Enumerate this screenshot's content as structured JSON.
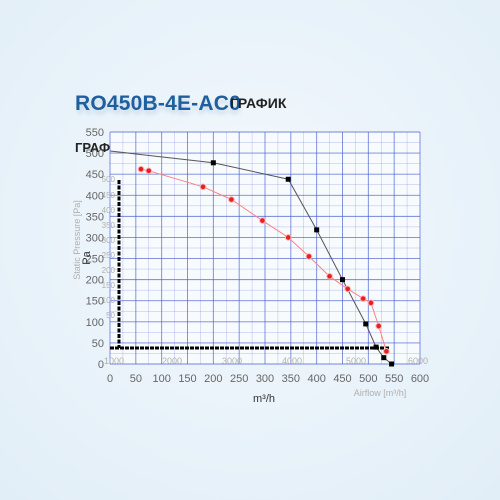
{
  "header": {
    "title": "RO450B-4E-AC0",
    "title_suffix": "ГРАФИК",
    "subtitle": "ГРАФИК"
  },
  "colors": {
    "grid": "#4a5fd0",
    "total_curve": "#555555",
    "static_curve": "#ff8080",
    "marker_black": "#000000",
    "marker_red": "#e62020",
    "tick_text": "#666666",
    "ghost_text": "#b0b0b0"
  },
  "chart_data": {
    "type": "line",
    "title": "",
    "xlabel": "m³/h",
    "ylabel": "Pa",
    "xlim": [
      0,
      600
    ],
    "ylim": [
      0,
      550
    ],
    "x_ticks": [
      "0",
      "50",
      "100",
      "150",
      "200",
      "250",
      "300",
      "350",
      "400",
      "450",
      "500",
      "550",
      "600"
    ],
    "y_ticks": [
      "0",
      "50",
      "100",
      "150",
      "200",
      "250",
      "300",
      "350",
      "400",
      "450",
      "500",
      "550"
    ],
    "ghost_labels": {
      "ylabel": "Static Pressure [Pa]",
      "xlabel": "Airflow [m³/h]",
      "x_ticks": [
        "1000",
        "2000",
        "3000",
        "4000",
        "5000",
        "6000"
      ],
      "y_ticks": [
        "500",
        "450",
        "400",
        "350",
        "300",
        "250",
        "200",
        "150",
        "100",
        "50"
      ]
    },
    "series": [
      {
        "name": "",
        "points": [
          [
            0,
            505
          ],
          [
            200,
            477
          ],
          [
            345,
            438
          ],
          [
            400,
            318
          ],
          [
            450,
            200
          ],
          [
            495,
            95
          ],
          [
            515,
            40
          ],
          [
            530,
            15
          ],
          [
            545,
            0
          ]
        ]
      },
      {
        "name": "",
        "points": [
          [
            60,
            462
          ],
          [
            75,
            458
          ],
          [
            180,
            420
          ],
          [
            235,
            390
          ],
          [
            295,
            340
          ],
          [
            345,
            300
          ],
          [
            385,
            255
          ],
          [
            425,
            208
          ],
          [
            460,
            178
          ],
          [
            490,
            155
          ],
          [
            505,
            145
          ],
          [
            520,
            90
          ],
          [
            535,
            30
          ]
        ]
      }
    ],
    "markers_total": [
      [
        200,
        477
      ],
      [
        345,
        438
      ],
      [
        400,
        318
      ],
      [
        450,
        200
      ],
      [
        495,
        95
      ],
      [
        515,
        40
      ],
      [
        530,
        15
      ],
      [
        545,
        0
      ]
    ],
    "markers_static": [
      [
        60,
        462
      ],
      [
        75,
        458
      ],
      [
        180,
        420
      ],
      [
        235,
        390
      ],
      [
        295,
        340
      ],
      [
        345,
        300
      ],
      [
        385,
        255
      ],
      [
        425,
        208
      ],
      [
        460,
        178
      ],
      [
        490,
        155
      ],
      [
        505,
        145
      ],
      [
        520,
        90
      ],
      [
        535,
        30
      ]
    ],
    "grid": true
  }
}
